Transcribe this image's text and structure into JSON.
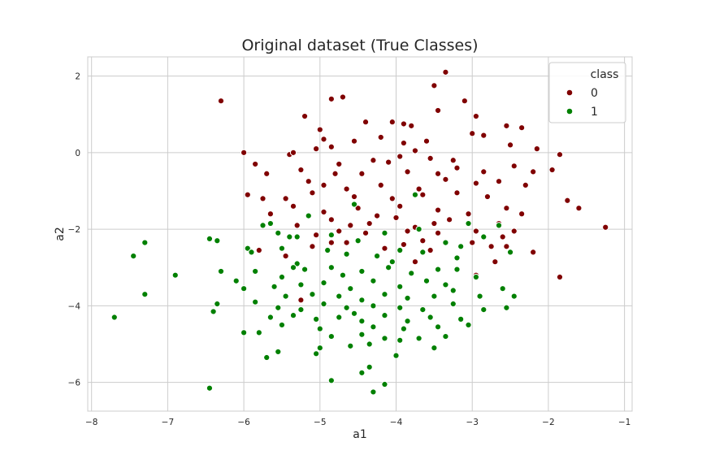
{
  "chart_data": {
    "type": "scatter",
    "title": "Original dataset (True Classes)",
    "xlabel": "a1",
    "ylabel": "a2",
    "xlim": [
      -8.05,
      -0.9
    ],
    "ylim": [
      -6.75,
      2.5
    ],
    "xticks": [
      -8,
      -7,
      -6,
      -5,
      -4,
      -3,
      -2,
      -1
    ],
    "yticks": [
      2,
      0,
      -2,
      -4,
      -6
    ],
    "grid": true,
    "legend": {
      "title": "class",
      "placement": "top-right",
      "entries": [
        "0",
        "1"
      ]
    },
    "series": [
      {
        "name": "0",
        "color": "#800000",
        "points": [
          [
            -6.3,
            1.35
          ],
          [
            -3.35,
            2.1
          ],
          [
            -3.5,
            1.75
          ],
          [
            -4.7,
            1.45
          ],
          [
            -4.85,
            1.4
          ],
          [
            -3.45,
            1.1
          ],
          [
            -3.1,
            1.35
          ],
          [
            -2.95,
            0.95
          ],
          [
            -5.2,
            0.95
          ],
          [
            -5.0,
            0.6
          ],
          [
            -4.4,
            0.8
          ],
          [
            -4.05,
            0.8
          ],
          [
            -3.8,
            0.7
          ],
          [
            -2.55,
            0.7
          ],
          [
            -2.35,
            0.65
          ],
          [
            -3.9,
            0.75
          ],
          [
            -3.6,
            0.3
          ],
          [
            -4.2,
            0.4
          ],
          [
            -4.55,
            0.3
          ],
          [
            -4.95,
            0.35
          ],
          [
            -4.85,
            0.15
          ],
          [
            -3.0,
            0.5
          ],
          [
            -2.85,
            0.45
          ],
          [
            -2.15,
            0.1
          ],
          [
            -1.85,
            -0.05
          ],
          [
            -6.0,
            0.0
          ],
          [
            -5.4,
            -0.05
          ],
          [
            -5.35,
            0.0
          ],
          [
            -5.05,
            0.1
          ],
          [
            -3.75,
            0.05
          ],
          [
            -3.9,
            0.25
          ],
          [
            -2.5,
            0.2
          ],
          [
            -4.3,
            -0.2
          ],
          [
            -4.1,
            -0.25
          ],
          [
            -3.95,
            -0.1
          ],
          [
            -3.55,
            -0.15
          ],
          [
            -3.25,
            -0.2
          ],
          [
            -5.85,
            -0.3
          ],
          [
            -5.7,
            -0.55
          ],
          [
            -5.25,
            -0.45
          ],
          [
            -4.75,
            -0.3
          ],
          [
            -4.45,
            -0.55
          ],
          [
            -3.85,
            -0.5
          ],
          [
            -3.45,
            -0.55
          ],
          [
            -2.85,
            -0.5
          ],
          [
            -2.45,
            -0.35
          ],
          [
            -2.2,
            -0.5
          ],
          [
            -1.95,
            -0.45
          ],
          [
            -5.15,
            -0.75
          ],
          [
            -4.95,
            -0.85
          ],
          [
            -4.65,
            -0.95
          ],
          [
            -4.2,
            -0.85
          ],
          [
            -3.7,
            -0.95
          ],
          [
            -3.35,
            -0.7
          ],
          [
            -2.95,
            -0.8
          ],
          [
            -2.65,
            -0.75
          ],
          [
            -2.3,
            -0.85
          ],
          [
            -5.95,
            -1.1
          ],
          [
            -5.45,
            -1.2
          ],
          [
            -5.1,
            -1.05
          ],
          [
            -4.55,
            -1.15
          ],
          [
            -4.05,
            -1.2
          ],
          [
            -3.65,
            -1.1
          ],
          [
            -3.2,
            -1.05
          ],
          [
            -2.8,
            -1.15
          ],
          [
            -5.65,
            -1.6
          ],
          [
            -5.35,
            -1.4
          ],
          [
            -4.95,
            -1.55
          ],
          [
            -4.5,
            -1.45
          ],
          [
            -4.25,
            -1.65
          ],
          [
            -3.95,
            -1.4
          ],
          [
            -3.45,
            -1.5
          ],
          [
            -3.05,
            -1.6
          ],
          [
            -2.55,
            -1.45
          ],
          [
            -1.75,
            -1.25
          ],
          [
            -1.6,
            -1.45
          ],
          [
            -5.3,
            -1.9
          ],
          [
            -4.85,
            -1.75
          ],
          [
            -4.6,
            -1.9
          ],
          [
            -4.35,
            -1.85
          ],
          [
            -4.0,
            -1.7
          ],
          [
            -3.75,
            -1.95
          ],
          [
            -3.5,
            -1.85
          ],
          [
            -3.3,
            -1.75
          ],
          [
            -2.65,
            -1.85
          ],
          [
            -2.35,
            -1.6
          ],
          [
            -5.05,
            -2.15
          ],
          [
            -4.75,
            -2.05
          ],
          [
            -4.4,
            -2.1
          ],
          [
            -3.85,
            -2.05
          ],
          [
            -3.65,
            -2.3
          ],
          [
            -3.45,
            -2.1
          ],
          [
            -2.95,
            -2.05
          ],
          [
            -2.6,
            -2.2
          ],
          [
            -2.45,
            -2.05
          ],
          [
            -1.25,
            -1.95
          ],
          [
            -5.1,
            -2.45
          ],
          [
            -4.85,
            -2.35
          ],
          [
            -4.15,
            -2.5
          ],
          [
            -3.9,
            -2.4
          ],
          [
            -3.55,
            -2.55
          ],
          [
            -3.0,
            -2.35
          ],
          [
            -2.75,
            -2.45
          ],
          [
            -5.8,
            -2.55
          ],
          [
            -5.45,
            -2.7
          ],
          [
            -3.75,
            -2.85
          ],
          [
            -2.7,
            -2.85
          ],
          [
            -2.2,
            -2.6
          ],
          [
            -1.85,
            -3.25
          ],
          [
            -2.95,
            -3.2
          ],
          [
            -5.25,
            -3.85
          ],
          [
            -2.55,
            -2.45
          ],
          [
            -5.75,
            -1.2
          ],
          [
            -4.65,
            -2.35
          ],
          [
            -3.2,
            -0.4
          ],
          [
            -4.8,
            -0.55
          ]
        ]
      },
      {
        "name": "1",
        "color": "#008000",
        "points": [
          [
            -4.55,
            -1.35
          ],
          [
            -3.75,
            -1.1
          ],
          [
            -5.15,
            -1.65
          ],
          [
            -5.65,
            -1.85
          ],
          [
            -5.75,
            -1.9
          ],
          [
            -3.05,
            -1.85
          ],
          [
            -2.65,
            -1.9
          ],
          [
            -5.55,
            -2.1
          ],
          [
            -5.3,
            -2.2
          ],
          [
            -4.85,
            -2.15
          ],
          [
            -4.15,
            -2.1
          ],
          [
            -3.35,
            -2.35
          ],
          [
            -6.45,
            -2.25
          ],
          [
            -6.35,
            -2.3
          ],
          [
            -5.4,
            -2.2
          ],
          [
            -4.5,
            -2.3
          ],
          [
            -3.95,
            -2.55
          ],
          [
            -3.15,
            -2.45
          ],
          [
            -2.5,
            -2.6
          ],
          [
            -7.3,
            -2.35
          ],
          [
            -7.45,
            -2.7
          ],
          [
            -5.95,
            -2.5
          ],
          [
            -5.5,
            -2.5
          ],
          [
            -4.65,
            -2.65
          ],
          [
            -4.25,
            -2.7
          ],
          [
            -3.65,
            -2.6
          ],
          [
            -3.2,
            -2.75
          ],
          [
            -5.9,
            -2.6
          ],
          [
            -6.3,
            -3.1
          ],
          [
            -5.85,
            -3.1
          ],
          [
            -5.5,
            -3.25
          ],
          [
            -5.2,
            -3.05
          ],
          [
            -4.85,
            -3.0
          ],
          [
            -4.45,
            -3.1
          ],
          [
            -4.1,
            -3.0
          ],
          [
            -3.8,
            -3.15
          ],
          [
            -3.45,
            -3.05
          ],
          [
            -2.95,
            -3.25
          ],
          [
            -6.9,
            -3.2
          ],
          [
            -6.1,
            -3.35
          ],
          [
            -5.6,
            -3.5
          ],
          [
            -5.25,
            -3.45
          ],
          [
            -4.95,
            -3.4
          ],
          [
            -4.6,
            -3.55
          ],
          [
            -4.3,
            -3.35
          ],
          [
            -3.95,
            -3.5
          ],
          [
            -3.6,
            -3.35
          ],
          [
            -3.25,
            -3.6
          ],
          [
            -2.6,
            -3.55
          ],
          [
            -7.3,
            -3.7
          ],
          [
            -6.0,
            -3.55
          ],
          [
            -5.45,
            -3.75
          ],
          [
            -5.1,
            -3.7
          ],
          [
            -4.75,
            -3.75
          ],
          [
            -4.45,
            -3.85
          ],
          [
            -4.15,
            -3.7
          ],
          [
            -3.85,
            -3.8
          ],
          [
            -3.5,
            -3.75
          ],
          [
            -2.9,
            -3.75
          ],
          [
            -2.45,
            -3.75
          ],
          [
            -6.35,
            -3.95
          ],
          [
            -5.85,
            -3.9
          ],
          [
            -5.55,
            -4.05
          ],
          [
            -5.25,
            -4.1
          ],
          [
            -4.95,
            -3.95
          ],
          [
            -4.65,
            -4.05
          ],
          [
            -4.3,
            -4.0
          ],
          [
            -3.95,
            -4.05
          ],
          [
            -3.65,
            -4.1
          ],
          [
            -3.25,
            -3.95
          ],
          [
            -2.85,
            -4.1
          ],
          [
            -2.55,
            -4.05
          ],
          [
            -7.7,
            -4.3
          ],
          [
            -6.4,
            -4.15
          ],
          [
            -5.65,
            -4.3
          ],
          [
            -5.35,
            -4.25
          ],
          [
            -5.05,
            -4.35
          ],
          [
            -4.75,
            -4.3
          ],
          [
            -4.45,
            -4.4
          ],
          [
            -4.15,
            -4.25
          ],
          [
            -3.85,
            -4.4
          ],
          [
            -3.55,
            -4.3
          ],
          [
            -3.15,
            -4.35
          ],
          [
            -5.5,
            -4.5
          ],
          [
            -5.0,
            -4.6
          ],
          [
            -4.3,
            -4.55
          ],
          [
            -3.9,
            -4.6
          ],
          [
            -3.45,
            -4.55
          ],
          [
            -3.05,
            -4.5
          ],
          [
            -6.0,
            -4.7
          ],
          [
            -5.8,
            -4.7
          ],
          [
            -4.85,
            -4.8
          ],
          [
            -4.45,
            -4.75
          ],
          [
            -4.15,
            -4.85
          ],
          [
            -3.7,
            -4.85
          ],
          [
            -3.35,
            -4.8
          ],
          [
            -5.0,
            -5.1
          ],
          [
            -4.6,
            -5.05
          ],
          [
            -4.35,
            -5.0
          ],
          [
            -3.95,
            -4.9
          ],
          [
            -3.5,
            -5.1
          ],
          [
            -5.55,
            -5.2
          ],
          [
            -5.05,
            -5.25
          ],
          [
            -4.0,
            -5.3
          ],
          [
            -5.7,
            -5.35
          ],
          [
            -4.35,
            -5.6
          ],
          [
            -4.45,
            -5.75
          ],
          [
            -4.85,
            -5.95
          ],
          [
            -4.15,
            -6.05
          ],
          [
            -4.3,
            -6.25
          ],
          [
            -6.45,
            -6.15
          ],
          [
            -3.2,
            -3.05
          ],
          [
            -4.05,
            -2.85
          ],
          [
            -5.3,
            -2.9
          ],
          [
            -4.9,
            -2.55
          ],
          [
            -3.7,
            -2.0
          ],
          [
            -2.85,
            -2.2
          ],
          [
            -5.35,
            -3.0
          ],
          [
            -4.7,
            -3.2
          ],
          [
            -3.35,
            -3.45
          ],
          [
            -4.55,
            -4.2
          ]
        ]
      }
    ]
  }
}
